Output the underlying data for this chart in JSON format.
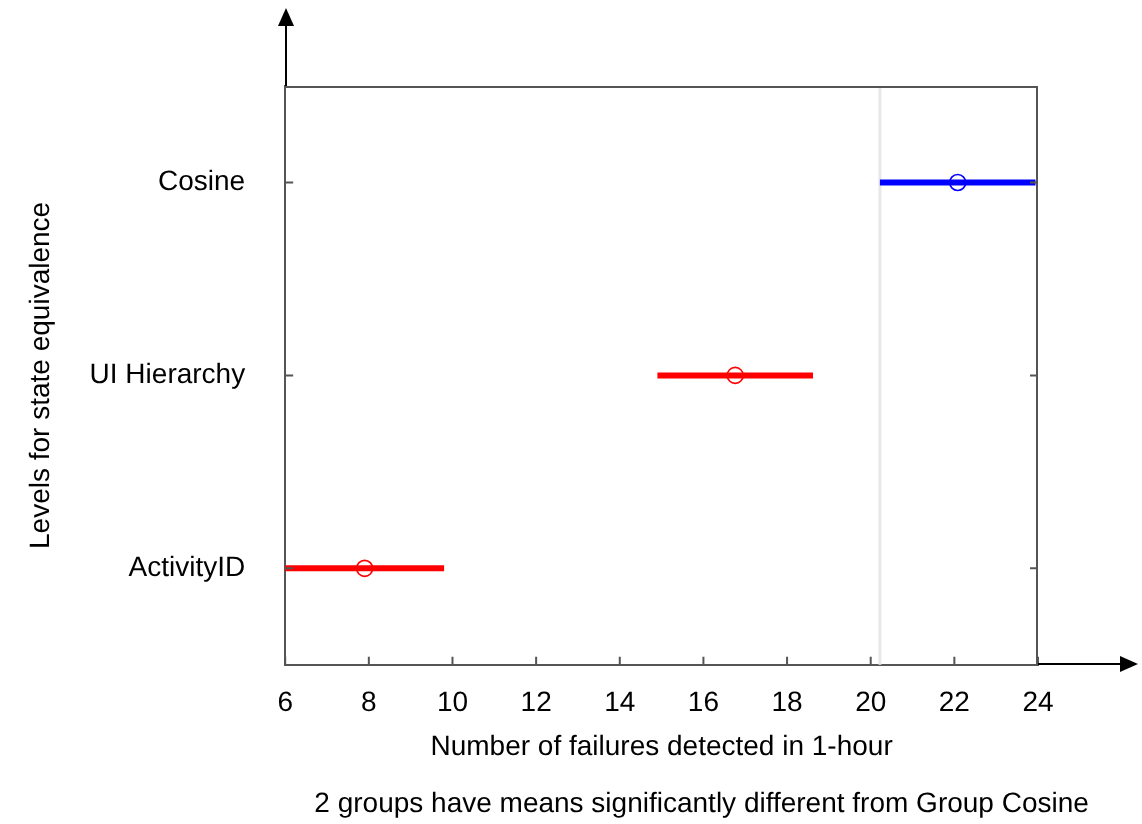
{
  "chart_data": {
    "type": "scatter",
    "orientation": "horizontal",
    "xlabel": "Number of failures detected in 1-hour",
    "ylabel": "Levels for state equivalence",
    "categories": [
      "Cosine",
      "UI Hierarchy",
      "ActivityID"
    ],
    "values": [
      22.08,
      16.76,
      7.9
    ],
    "errors": [
      1.86,
      1.86,
      1.9
    ],
    "colors": [
      "#0000ff",
      "#ff0000",
      "#ff0000"
    ],
    "marker": "circle",
    "xlim": [
      6,
      24
    ],
    "xticks": [
      6,
      8,
      10,
      12,
      14,
      16,
      18,
      20,
      22,
      24
    ],
    "ref_lines": [
      {
        "axis": "x",
        "value": 20.22,
        "color": "#e8e8e8"
      }
    ],
    "annotations": [
      "2 groups have means significantly different from Group Cosine"
    ]
  }
}
